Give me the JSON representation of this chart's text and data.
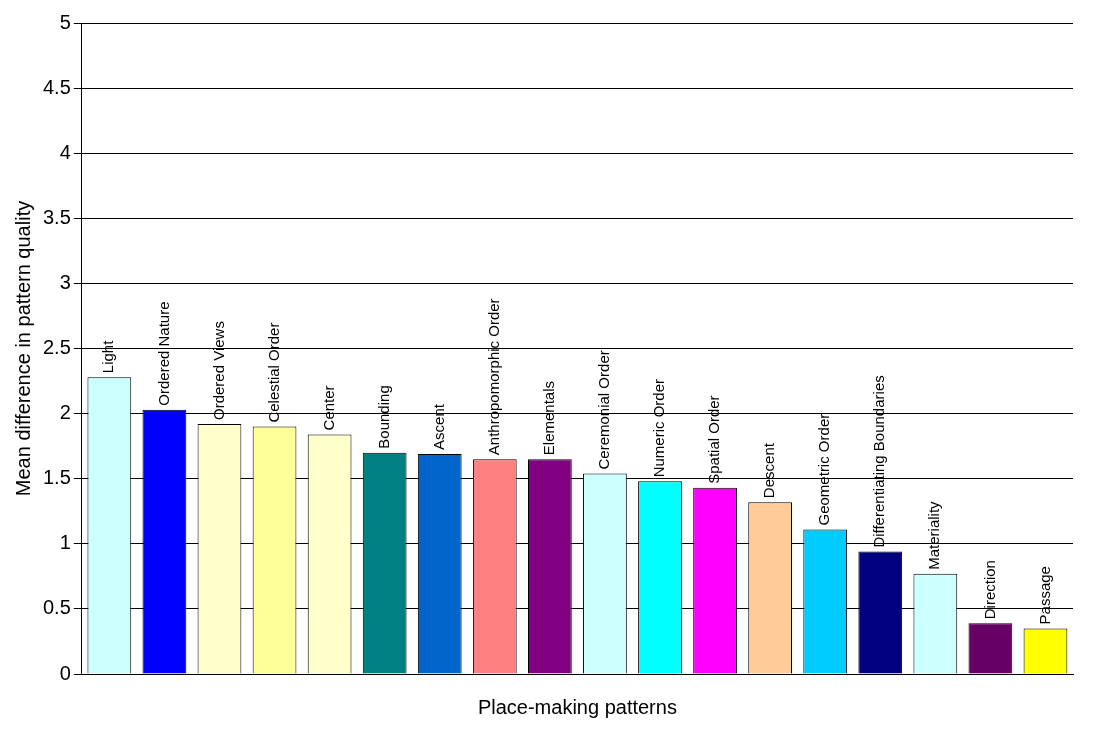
{
  "chart_data": {
    "type": "bar",
    "xlabel": "Place-making patterns",
    "ylabel": "Mean difference in pattern quality",
    "categories": [
      "Light",
      "Ordered Nature",
      "Ordered Views",
      "Celestial Order",
      "Center",
      "Bounding",
      "Ascent",
      "Anthropomorphic Order",
      "Elementals",
      "Ceremonial Order",
      "Numeric Order",
      "Spatial Order",
      "Descent",
      "Geometric Order",
      "Differentiating Boundaries",
      "Materiality",
      "Direction",
      "Passage"
    ],
    "values": [
      2.28,
      2.03,
      1.92,
      1.9,
      1.84,
      1.7,
      1.69,
      1.65,
      1.65,
      1.54,
      1.48,
      1.43,
      1.32,
      1.11,
      0.94,
      0.77,
      0.39,
      0.35
    ],
    "colors": [
      "#ccffff",
      "#0000ff",
      "#ffffcc",
      "#ffff99",
      "#ffffcc",
      "#008080",
      "#0066cc",
      "#ff8080",
      "#800080",
      "#ccffff",
      "#00ffff",
      "#ff00ff",
      "#ffcc99",
      "#00ccff",
      "#000080",
      "#ccffff",
      "#660066",
      "#ffff00"
    ],
    "ylim": [
      0,
      5
    ],
    "yticks": [
      0,
      0.5,
      1,
      1.5,
      2,
      2.5,
      3,
      3.5,
      4,
      4.5,
      5
    ],
    "grid": "y",
    "legend": false,
    "tick_labels": "y"
  }
}
